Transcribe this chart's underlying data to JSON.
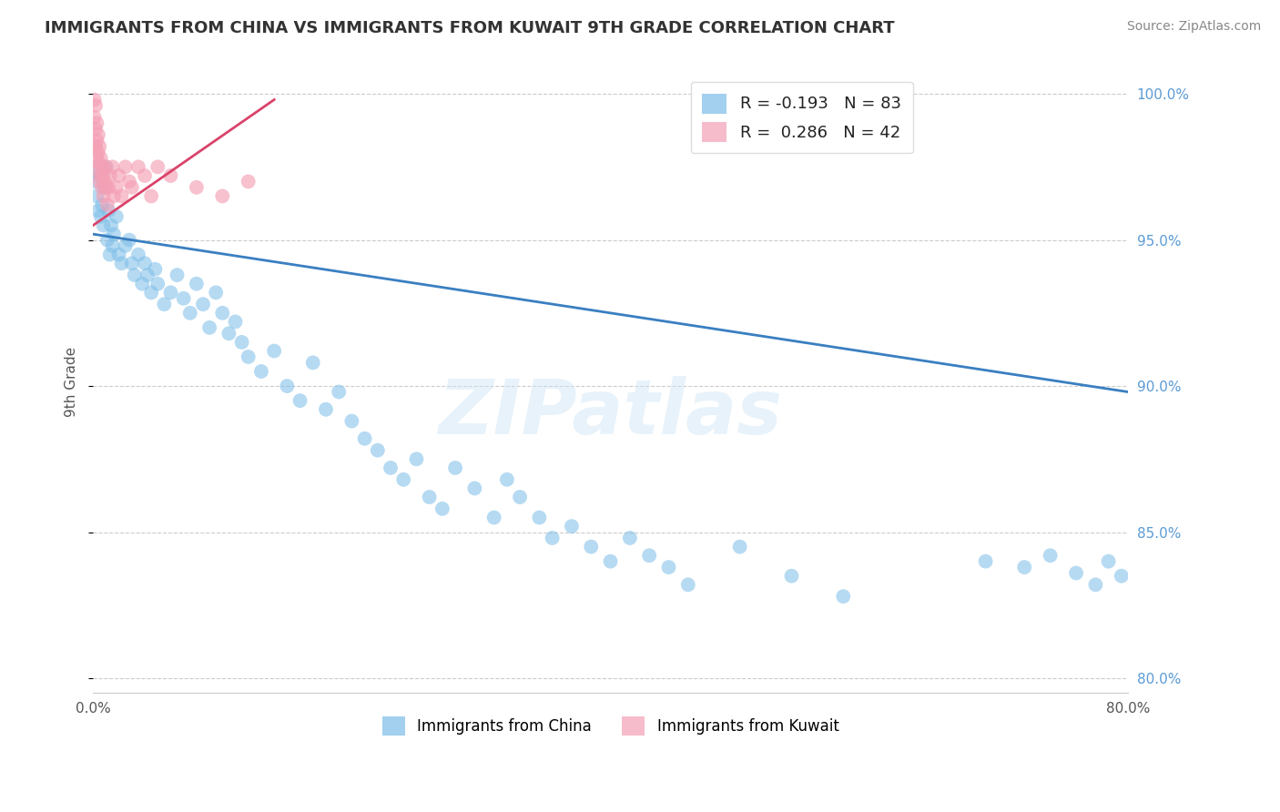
{
  "title": "IMMIGRANTS FROM CHINA VS IMMIGRANTS FROM KUWAIT 9TH GRADE CORRELATION CHART",
  "source": "Source: ZipAtlas.com",
  "ylabel": "9th Grade",
  "xlim": [
    0.0,
    0.8
  ],
  "ylim": [
    0.795,
    1.008
  ],
  "yticks": [
    0.8,
    0.85,
    0.9,
    0.95,
    1.0
  ],
  "ytick_labels": [
    "80.0%",
    "85.0%",
    "90.0%",
    "95.0%",
    "100.0%"
  ],
  "xtick_positions": [
    0.0,
    0.1,
    0.2,
    0.3,
    0.4,
    0.5,
    0.6,
    0.7,
    0.8
  ],
  "xtick_labels": [
    "0.0%",
    "",
    "",
    "",
    "",
    "",
    "",
    "",
    "80.0%"
  ],
  "R_china": -0.193,
  "N_china": 83,
  "R_kuwait": 0.286,
  "N_kuwait": 42,
  "china_color": "#7bbde8",
  "kuwait_color": "#f4a0b5",
  "china_line_color": "#3a7fc1",
  "kuwait_line_color": "#d9446a",
  "watermark": "ZIPatlas",
  "china_line_x0": 0.0,
  "china_line_y0": 0.952,
  "china_line_x1": 0.8,
  "china_line_y1": 0.898,
  "kuwait_line_x0": 0.0,
  "kuwait_line_y0": 0.955,
  "kuwait_line_x1": 0.14,
  "kuwait_line_y1": 0.998,
  "china_scatter_x": [
    0.001,
    0.002,
    0.003,
    0.004,
    0.005,
    0.006,
    0.007,
    0.008,
    0.009,
    0.01,
    0.011,
    0.012,
    0.013,
    0.014,
    0.015,
    0.016,
    0.018,
    0.02,
    0.022,
    0.025,
    0.028,
    0.03,
    0.032,
    0.035,
    0.038,
    0.04,
    0.042,
    0.045,
    0.048,
    0.05,
    0.055,
    0.06,
    0.065,
    0.07,
    0.075,
    0.08,
    0.085,
    0.09,
    0.095,
    0.1,
    0.105,
    0.11,
    0.115,
    0.12,
    0.13,
    0.14,
    0.15,
    0.16,
    0.17,
    0.18,
    0.19,
    0.2,
    0.21,
    0.22,
    0.23,
    0.24,
    0.25,
    0.26,
    0.27,
    0.28,
    0.295,
    0.31,
    0.32,
    0.33,
    0.345,
    0.355,
    0.37,
    0.385,
    0.4,
    0.415,
    0.43,
    0.445,
    0.46,
    0.5,
    0.54,
    0.58,
    0.69,
    0.72,
    0.74,
    0.76,
    0.775,
    0.785,
    0.795
  ],
  "china_scatter_y": [
    0.97,
    0.975,
    0.965,
    0.96,
    0.972,
    0.958,
    0.962,
    0.955,
    0.968,
    0.975,
    0.95,
    0.96,
    0.945,
    0.955,
    0.948,
    0.952,
    0.958,
    0.945,
    0.942,
    0.948,
    0.95,
    0.942,
    0.938,
    0.945,
    0.935,
    0.942,
    0.938,
    0.932,
    0.94,
    0.935,
    0.928,
    0.932,
    0.938,
    0.93,
    0.925,
    0.935,
    0.928,
    0.92,
    0.932,
    0.925,
    0.918,
    0.922,
    0.915,
    0.91,
    0.905,
    0.912,
    0.9,
    0.895,
    0.908,
    0.892,
    0.898,
    0.888,
    0.882,
    0.878,
    0.872,
    0.868,
    0.875,
    0.862,
    0.858,
    0.872,
    0.865,
    0.855,
    0.868,
    0.862,
    0.855,
    0.848,
    0.852,
    0.845,
    0.84,
    0.848,
    0.842,
    0.838,
    0.832,
    0.845,
    0.835,
    0.828,
    0.84,
    0.838,
    0.842,
    0.836,
    0.832,
    0.84,
    0.835
  ],
  "kuwait_scatter_x": [
    0.001,
    0.001,
    0.002,
    0.002,
    0.002,
    0.003,
    0.003,
    0.003,
    0.004,
    0.004,
    0.004,
    0.005,
    0.005,
    0.005,
    0.006,
    0.006,
    0.007,
    0.007,
    0.008,
    0.008,
    0.009,
    0.01,
    0.01,
    0.011,
    0.012,
    0.013,
    0.015,
    0.016,
    0.018,
    0.02,
    0.022,
    0.025,
    0.028,
    0.03,
    0.035,
    0.04,
    0.045,
    0.05,
    0.06,
    0.08,
    0.1,
    0.12
  ],
  "kuwait_scatter_y": [
    0.998,
    0.992,
    0.996,
    0.988,
    0.982,
    0.99,
    0.984,
    0.978,
    0.986,
    0.98,
    0.974,
    0.982,
    0.976,
    0.97,
    0.978,
    0.972,
    0.975,
    0.968,
    0.972,
    0.965,
    0.97,
    0.975,
    0.968,
    0.962,
    0.968,
    0.972,
    0.975,
    0.965,
    0.968,
    0.972,
    0.965,
    0.975,
    0.97,
    0.968,
    0.975,
    0.972,
    0.965,
    0.975,
    0.972,
    0.968,
    0.965,
    0.97
  ]
}
